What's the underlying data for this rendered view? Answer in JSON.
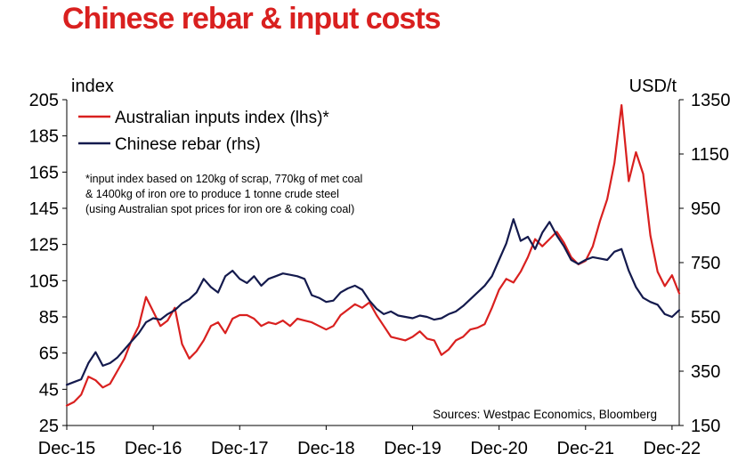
{
  "title": "Chinese rebar & input costs",
  "colors": {
    "title": "#d9201f",
    "inputs": "#d9201f",
    "rebar": "#141a4d",
    "axis": "#000000"
  },
  "chart_data": {
    "type": "line",
    "left_axis_unit": "index",
    "right_axis_unit": "USD/t",
    "left_ylim": [
      25,
      205
    ],
    "left_ticks": [
      "205",
      "185",
      "165",
      "145",
      "125",
      "105",
      "85",
      "65",
      "45",
      "25"
    ],
    "right_ylim": [
      150,
      1350
    ],
    "right_ticks": [
      "1350",
      "1150",
      "950",
      "750",
      "550",
      "350",
      "150"
    ],
    "xlim": [
      "2015-12",
      "2023-01"
    ],
    "x_ticks": [
      "Dec-15",
      "Dec-16",
      "Dec-17",
      "Dec-18",
      "Dec-19",
      "Dec-20",
      "Dec-21",
      "Dec-22"
    ],
    "grid": false,
    "legend_position": "top-left",
    "legend": [
      "Australian inputs index (lhs)*",
      "Chinese rebar  (rhs)"
    ],
    "note": [
      "*input index based on 120kg of scrap, 770kg of met coal",
      "& 1400kg of iron ore to produce 1 tonne crude steel",
      "(using Australian spot prices for iron ore & coking coal)"
    ],
    "source": "Sources: Westpac Economics, Bloomberg",
    "series": [
      {
        "name": "Australian inputs index (lhs)*",
        "axis": "left",
        "points": [
          [
            "2015-12",
            36
          ],
          [
            "2016-01",
            38
          ],
          [
            "2016-02",
            42
          ],
          [
            "2016-03",
            52
          ],
          [
            "2016-04",
            50
          ],
          [
            "2016-05",
            46
          ],
          [
            "2016-06",
            48
          ],
          [
            "2016-07",
            55
          ],
          [
            "2016-08",
            62
          ],
          [
            "2016-09",
            72
          ],
          [
            "2016-10",
            80
          ],
          [
            "2016-11",
            96
          ],
          [
            "2016-12",
            88
          ],
          [
            "2017-01",
            80
          ],
          [
            "2017-02",
            83
          ],
          [
            "2017-03",
            90
          ],
          [
            "2017-04",
            70
          ],
          [
            "2017-05",
            62
          ],
          [
            "2017-06",
            66
          ],
          [
            "2017-07",
            72
          ],
          [
            "2017-08",
            80
          ],
          [
            "2017-09",
            82
          ],
          [
            "2017-10",
            76
          ],
          [
            "2017-11",
            84
          ],
          [
            "2017-12",
            86
          ],
          [
            "2018-01",
            86
          ],
          [
            "2018-02",
            84
          ],
          [
            "2018-03",
            80
          ],
          [
            "2018-04",
            82
          ],
          [
            "2018-05",
            81
          ],
          [
            "2018-06",
            83
          ],
          [
            "2018-07",
            80
          ],
          [
            "2018-08",
            84
          ],
          [
            "2018-09",
            83
          ],
          [
            "2018-10",
            82
          ],
          [
            "2018-11",
            80
          ],
          [
            "2018-12",
            78
          ],
          [
            "2019-01",
            80
          ],
          [
            "2019-02",
            86
          ],
          [
            "2019-03",
            89
          ],
          [
            "2019-04",
            92
          ],
          [
            "2019-05",
            90
          ],
          [
            "2019-06",
            93
          ],
          [
            "2019-07",
            86
          ],
          [
            "2019-08",
            80
          ],
          [
            "2019-09",
            74
          ],
          [
            "2019-10",
            73
          ],
          [
            "2019-11",
            72
          ],
          [
            "2019-12",
            74
          ],
          [
            "2020-01",
            77
          ],
          [
            "2020-02",
            73
          ],
          [
            "2020-03",
            72
          ],
          [
            "2020-04",
            64
          ],
          [
            "2020-05",
            67
          ],
          [
            "2020-06",
            72
          ],
          [
            "2020-07",
            74
          ],
          [
            "2020-08",
            78
          ],
          [
            "2020-09",
            79
          ],
          [
            "2020-10",
            81
          ],
          [
            "2020-11",
            90
          ],
          [
            "2020-12",
            100
          ],
          [
            "2021-01",
            106
          ],
          [
            "2021-02",
            104
          ],
          [
            "2021-03",
            110
          ],
          [
            "2021-04",
            118
          ],
          [
            "2021-05",
            128
          ],
          [
            "2021-06",
            124
          ],
          [
            "2021-07",
            128
          ],
          [
            "2021-08",
            132
          ],
          [
            "2021-09",
            126
          ],
          [
            "2021-10",
            118
          ],
          [
            "2021-11",
            114
          ],
          [
            "2021-12",
            116
          ],
          [
            "2022-01",
            124
          ],
          [
            "2022-02",
            138
          ],
          [
            "2022-03",
            150
          ],
          [
            "2022-04",
            170
          ],
          [
            "2022-05",
            202
          ],
          [
            "2022-06",
            160
          ],
          [
            "2022-07",
            176
          ],
          [
            "2022-08",
            164
          ],
          [
            "2022-09",
            130
          ],
          [
            "2022-10",
            110
          ],
          [
            "2022-11",
            102
          ],
          [
            "2022-12",
            108
          ],
          [
            "2023-01",
            98
          ]
        ]
      },
      {
        "name": "Chinese rebar  (rhs)",
        "axis": "right",
        "points": [
          [
            "2015-12",
            300
          ],
          [
            "2016-01",
            310
          ],
          [
            "2016-02",
            320
          ],
          [
            "2016-03",
            380
          ],
          [
            "2016-04",
            420
          ],
          [
            "2016-05",
            370
          ],
          [
            "2016-06",
            380
          ],
          [
            "2016-07",
            400
          ],
          [
            "2016-08",
            430
          ],
          [
            "2016-09",
            460
          ],
          [
            "2016-10",
            490
          ],
          [
            "2016-11",
            530
          ],
          [
            "2016-12",
            545
          ],
          [
            "2017-01",
            540
          ],
          [
            "2017-02",
            560
          ],
          [
            "2017-03",
            575
          ],
          [
            "2017-04",
            600
          ],
          [
            "2017-05",
            615
          ],
          [
            "2017-06",
            640
          ],
          [
            "2017-07",
            690
          ],
          [
            "2017-08",
            660
          ],
          [
            "2017-09",
            640
          ],
          [
            "2017-10",
            700
          ],
          [
            "2017-11",
            720
          ],
          [
            "2017-12",
            690
          ],
          [
            "2018-01",
            675
          ],
          [
            "2018-02",
            700
          ],
          [
            "2018-03",
            665
          ],
          [
            "2018-04",
            690
          ],
          [
            "2018-05",
            700
          ],
          [
            "2018-06",
            710
          ],
          [
            "2018-07",
            705
          ],
          [
            "2018-08",
            700
          ],
          [
            "2018-09",
            690
          ],
          [
            "2018-10",
            630
          ],
          [
            "2018-11",
            620
          ],
          [
            "2018-12",
            605
          ],
          [
            "2019-01",
            610
          ],
          [
            "2019-02",
            640
          ],
          [
            "2019-03",
            655
          ],
          [
            "2019-04",
            665
          ],
          [
            "2019-05",
            650
          ],
          [
            "2019-06",
            610
          ],
          [
            "2019-07",
            580
          ],
          [
            "2019-08",
            560
          ],
          [
            "2019-09",
            570
          ],
          [
            "2019-10",
            555
          ],
          [
            "2019-11",
            550
          ],
          [
            "2019-12",
            545
          ],
          [
            "2020-01",
            555
          ],
          [
            "2020-02",
            550
          ],
          [
            "2020-03",
            540
          ],
          [
            "2020-04",
            545
          ],
          [
            "2020-05",
            560
          ],
          [
            "2020-06",
            570
          ],
          [
            "2020-07",
            590
          ],
          [
            "2020-08",
            615
          ],
          [
            "2020-09",
            640
          ],
          [
            "2020-10",
            665
          ],
          [
            "2020-11",
            700
          ],
          [
            "2020-12",
            760
          ],
          [
            "2021-01",
            820
          ],
          [
            "2021-02",
            910
          ],
          [
            "2021-03",
            830
          ],
          [
            "2021-04",
            845
          ],
          [
            "2021-05",
            800
          ],
          [
            "2021-06",
            860
          ],
          [
            "2021-07",
            900
          ],
          [
            "2021-08",
            850
          ],
          [
            "2021-09",
            810
          ],
          [
            "2021-10",
            760
          ],
          [
            "2021-11",
            745
          ],
          [
            "2021-12",
            760
          ],
          [
            "2022-01",
            770
          ],
          [
            "2022-02",
            765
          ],
          [
            "2022-03",
            760
          ],
          [
            "2022-04",
            790
          ],
          [
            "2022-05",
            800
          ],
          [
            "2022-06",
            720
          ],
          [
            "2022-07",
            660
          ],
          [
            "2022-08",
            620
          ],
          [
            "2022-09",
            605
          ],
          [
            "2022-10",
            595
          ],
          [
            "2022-11",
            560
          ],
          [
            "2022-12",
            550
          ],
          [
            "2023-01",
            575
          ]
        ]
      }
    ]
  }
}
